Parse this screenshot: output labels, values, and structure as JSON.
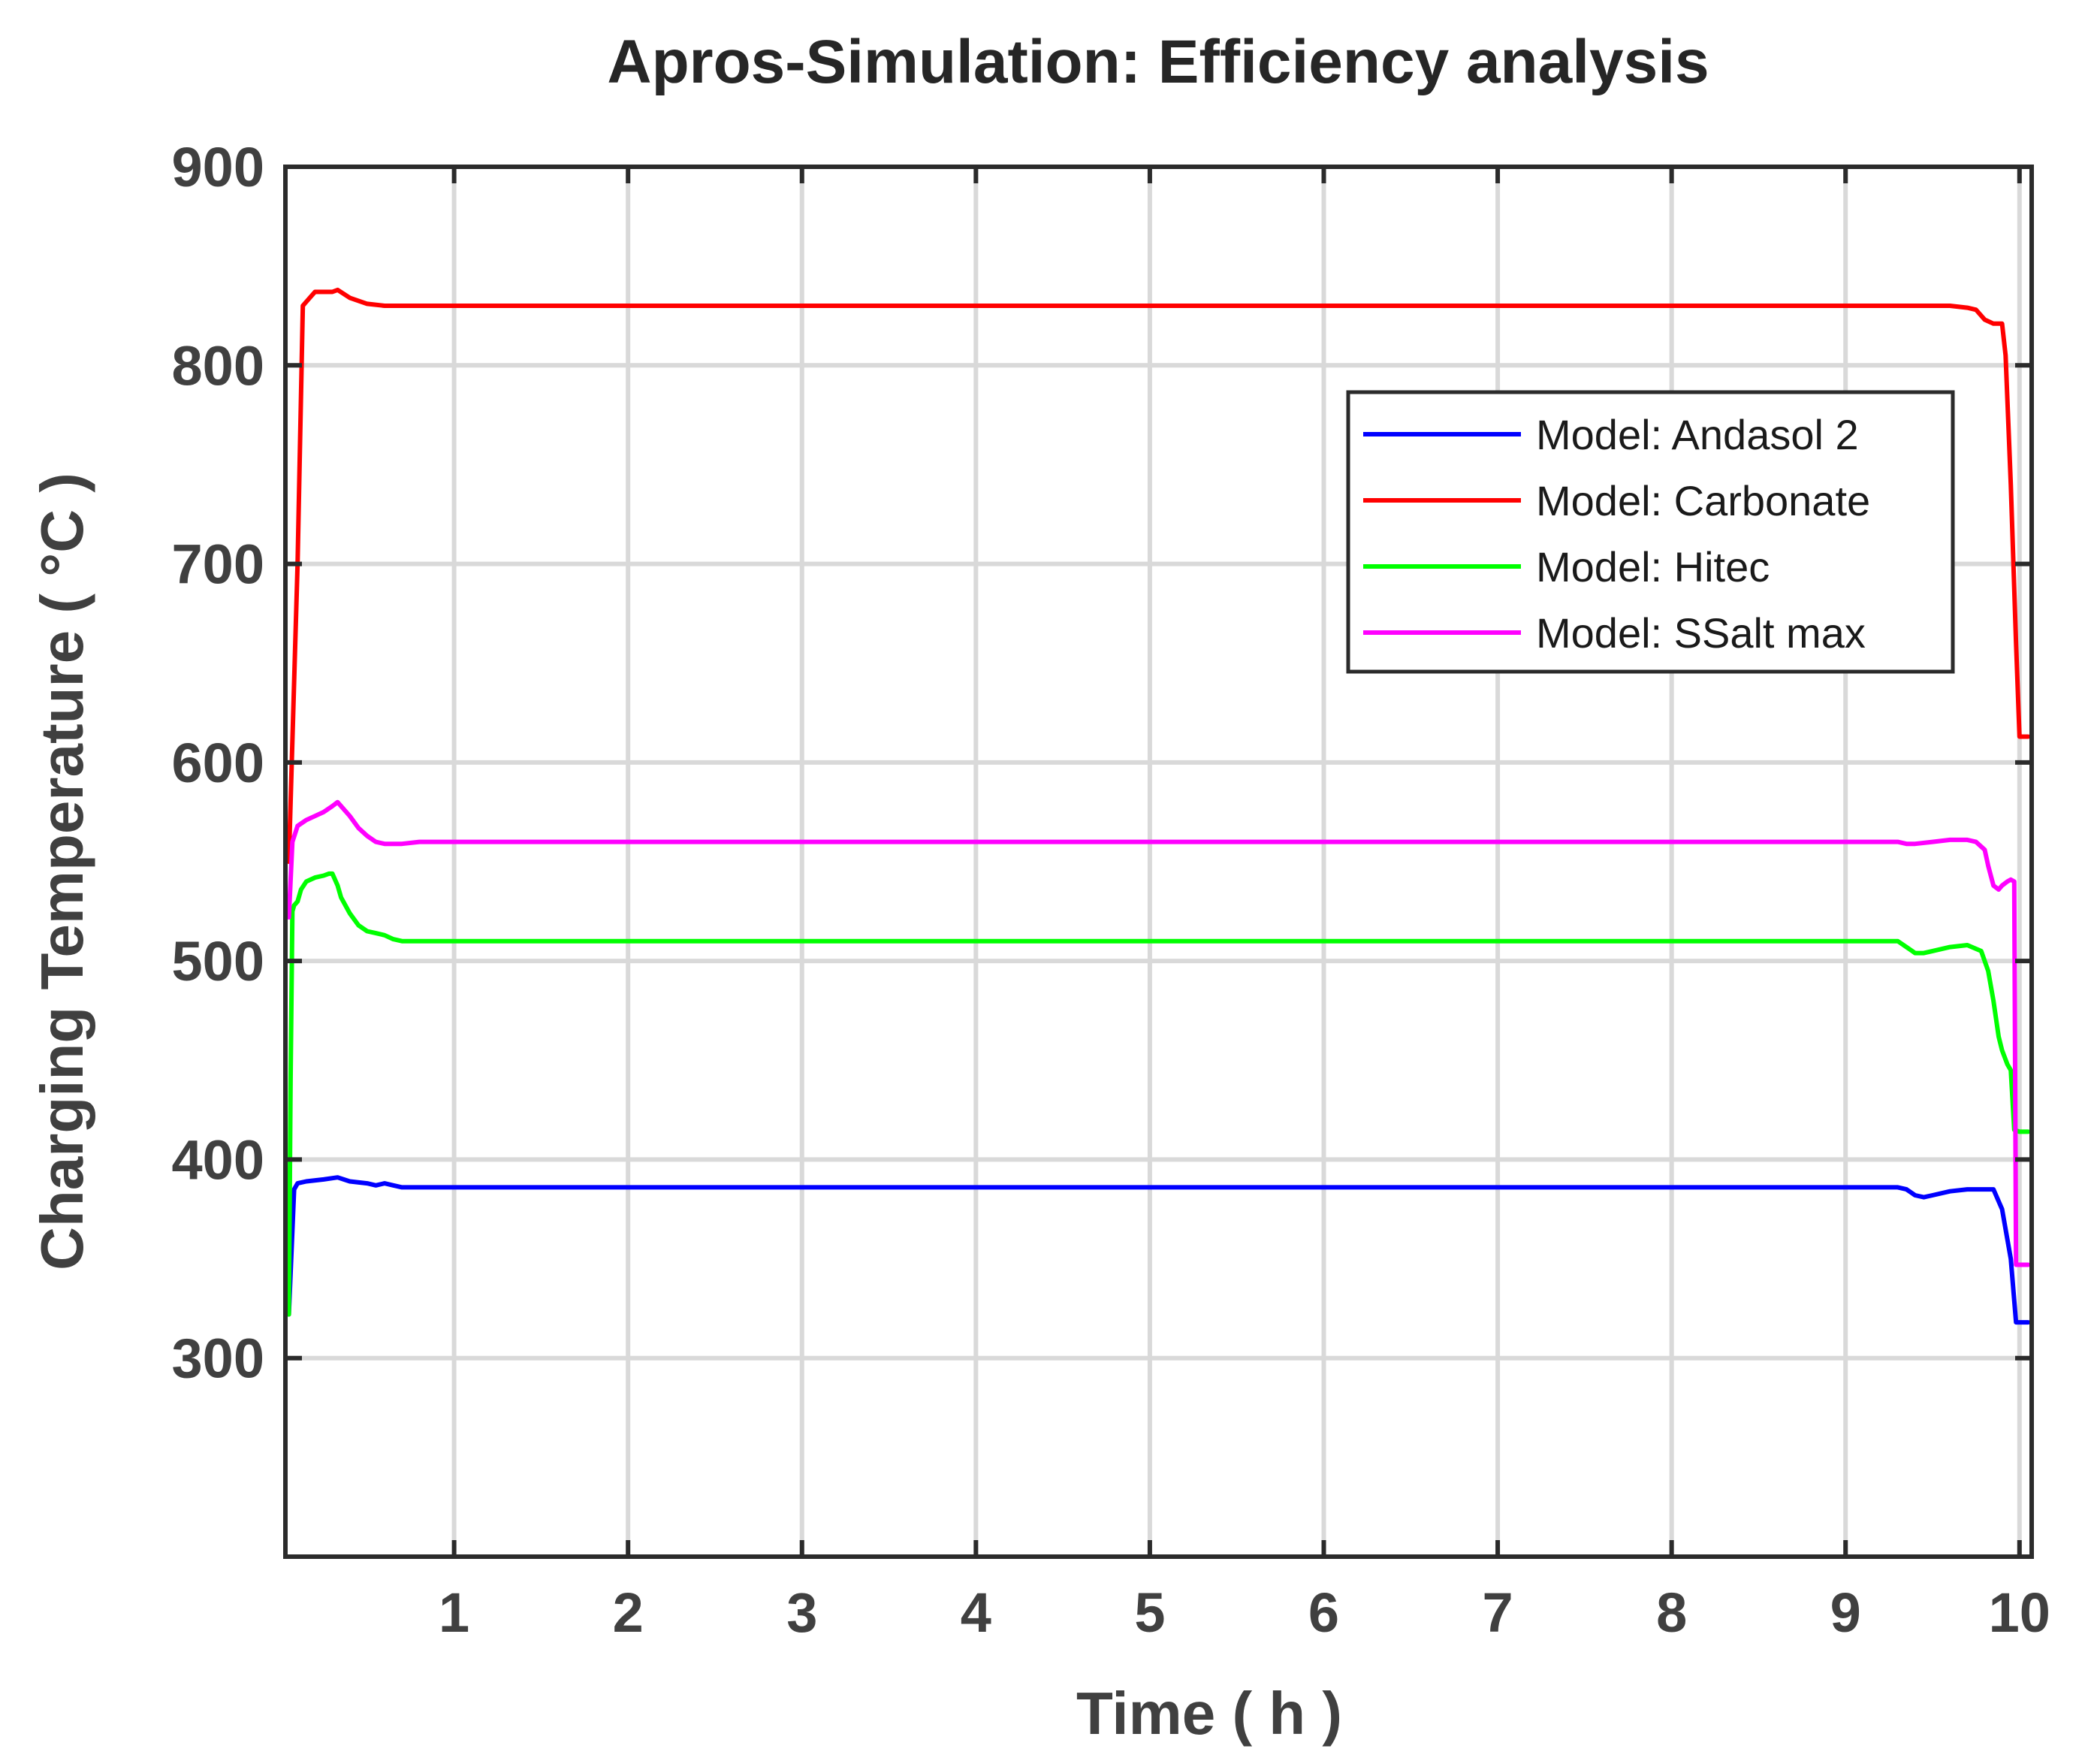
{
  "chart_data": {
    "type": "line",
    "title": "Apros-Simulation: Efficiency analysis",
    "xlabel": "Time ( h )",
    "ylabel": "Charging Temperature ( °C )",
    "xlim": [
      0.03,
      10.07
    ],
    "ylim": [
      200,
      900
    ],
    "xticks": [
      1,
      2,
      3,
      4,
      5,
      6,
      7,
      8,
      9,
      10
    ],
    "yticks": [
      300,
      400,
      500,
      600,
      700,
      800,
      900
    ],
    "grid": true,
    "legend_position": "top-right",
    "series": [
      {
        "name": "Model: Andasol 2",
        "color": "#0000ff",
        "x": [
          0.05,
          0.08,
          0.1,
          0.15,
          0.25,
          0.33,
          0.4,
          0.5,
          0.55,
          0.6,
          0.65,
          0.7,
          0.8,
          1.0,
          2.0,
          4.0,
          6.0,
          8.0,
          9.3,
          9.35,
          9.4,
          9.45,
          9.5,
          9.6,
          9.7,
          9.85,
          9.9,
          9.95,
          9.98,
          10.0,
          10.05
        ],
        "y": [
          322,
          385,
          388,
          389,
          390,
          391,
          389,
          388,
          387,
          388,
          387,
          386,
          386,
          386,
          386,
          386,
          386,
          386,
          386,
          385,
          382,
          381,
          382,
          384,
          385,
          385,
          375,
          350,
          318,
          318,
          318
        ]
      },
      {
        "name": "Model: Carbonate",
        "color": "#ff0000",
        "x": [
          0.05,
          0.1,
          0.13,
          0.15,
          0.18,
          0.2,
          0.3,
          0.33,
          0.4,
          0.5,
          0.6,
          1.0,
          3.0,
          6.0,
          9.3,
          9.4,
          9.6,
          9.7,
          9.75,
          9.8,
          9.85,
          9.9,
          9.92,
          9.95,
          9.98,
          10.0,
          10.05
        ],
        "y": [
          550,
          700,
          830,
          832,
          835,
          837,
          837,
          838,
          834,
          831,
          830,
          830,
          830,
          830,
          830,
          830,
          830,
          829,
          828,
          823,
          821,
          821,
          805,
          740,
          660,
          613,
          613
        ]
      },
      {
        "name": "Model: Hitec",
        "color": "#00ff00",
        "x": [
          0.05,
          0.06,
          0.07,
          0.08,
          0.1,
          0.12,
          0.15,
          0.2,
          0.25,
          0.28,
          0.3,
          0.33,
          0.35,
          0.4,
          0.45,
          0.5,
          0.55,
          0.6,
          0.65,
          0.7,
          0.8,
          1.0,
          3.0,
          6.0,
          9.3,
          9.35,
          9.4,
          9.45,
          9.5,
          9.6,
          9.7,
          9.78,
          9.82,
          9.85,
          9.88,
          9.9,
          9.93,
          9.95,
          9.97,
          10.0,
          10.05
        ],
        "y": [
          322,
          440,
          525,
          528,
          530,
          536,
          540,
          542,
          543,
          544,
          544,
          538,
          532,
          524,
          518,
          515,
          514,
          513,
          511,
          510,
          510,
          510,
          510,
          510,
          510,
          507,
          504,
          504,
          505,
          507,
          508,
          505,
          495,
          480,
          462,
          455,
          448,
          445,
          415,
          414,
          414
        ]
      },
      {
        "name": "Model: SSalt max",
        "color": "#ff00ff",
        "x": [
          0.05,
          0.07,
          0.1,
          0.15,
          0.2,
          0.25,
          0.3,
          0.33,
          0.35,
          0.4,
          0.45,
          0.5,
          0.55,
          0.6,
          0.7,
          0.8,
          1.0,
          3.0,
          6.0,
          9.3,
          9.35,
          9.4,
          9.5,
          9.6,
          9.7,
          9.75,
          9.8,
          9.82,
          9.85,
          9.88,
          9.9,
          9.93,
          9.95,
          9.97,
          9.98,
          10.0,
          10.05
        ],
        "y": [
          522,
          560,
          568,
          571,
          573,
          575,
          578,
          580,
          578,
          573,
          567,
          563,
          560,
          559,
          559,
          560,
          560,
          560,
          560,
          560,
          559,
          559,
          560,
          561,
          561,
          560,
          556,
          548,
          538,
          536,
          538,
          540,
          541,
          540,
          347,
          347,
          347
        ]
      }
    ]
  }
}
